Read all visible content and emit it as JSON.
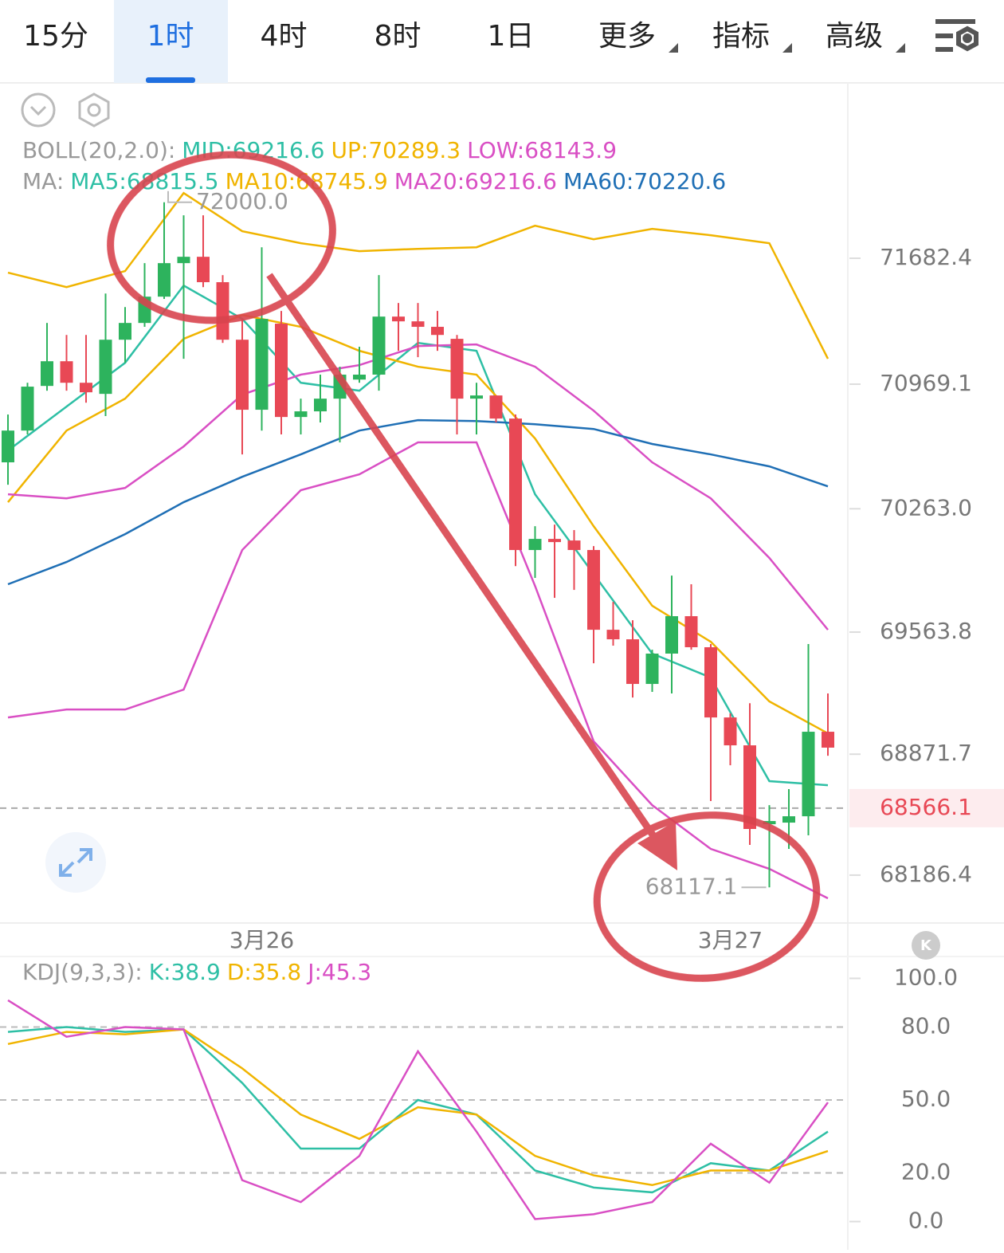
{
  "toolbar": {
    "tabs": [
      "15分",
      "1时",
      "4时",
      "8时",
      "1日",
      "更多",
      "指标",
      "高级"
    ],
    "active_tab": "1时"
  },
  "chart_data": [
    {
      "type": "candlestick",
      "ylim": [
        67915,
        72672
      ],
      "yticks": [
        71682.4,
        70969.1,
        {
          "value": 70263,
          "label": "70263.0"
        },
        69563.8,
        68871.7,
        68186.4
      ],
      "xticks": [
        {
          "value": 13,
          "label": "3月26"
        },
        {
          "value": 37,
          "label": "3月27"
        }
      ],
      "up_color": "#2db35d",
      "down_color": "#e84855",
      "open": [
        70526,
        70706,
        70959,
        71099,
        70977,
        70914,
        71221,
        71316,
        71465,
        71655,
        71691,
        71547,
        71221,
        70824,
        71312,
        70783,
        70815,
        70887,
        70995,
        71023,
        71352,
        71325,
        71294,
        71226,
        70887,
        70905,
        70774,
        70029,
        70092,
        70083,
        70029,
        69577,
        69523,
        69270,
        69442,
        69654,
        69478,
        69080,
        68922,
        68475,
        68484,
        68520,
        68999
      ],
      "close": [
        70706,
        70955,
        71099,
        70977,
        70923,
        71221,
        71316,
        71465,
        71655,
        71691,
        71547,
        71221,
        70824,
        71339,
        70783,
        70815,
        70887,
        71023,
        71023,
        71352,
        71325,
        71294,
        71248,
        70887,
        70905,
        70774,
        70029,
        70092,
        70074,
        70029,
        69577,
        69523,
        69270,
        69442,
        69654,
        69478,
        69080,
        68922,
        68448,
        68493,
        68520,
        68999,
        68909
      ],
      "high": [
        70797,
        70977,
        71316,
        71248,
        71248,
        71483,
        71406,
        71655,
        72000,
        71926,
        71926,
        71587,
        71339,
        71745,
        71384,
        70887,
        71023,
        71068,
        71181,
        71587,
        71429,
        71429,
        71384,
        71248,
        70977,
        70905,
        70797,
        70164,
        70173,
        70142,
        70051,
        69735,
        69631,
        69464,
        69884,
        69835,
        69496,
        69103,
        69161,
        68583,
        68674,
        69496,
        69216
      ],
      "low": [
        70399,
        70684,
        70932,
        70932,
        70864,
        70788,
        71090,
        71294,
        71452,
        71113,
        71519,
        71203,
        70571,
        70706,
        70684,
        70684,
        70752,
        70639,
        70977,
        70932,
        71158,
        71122,
        71158,
        70684,
        70684,
        70752,
        69938,
        69871,
        69758,
        69803,
        69387,
        69487,
        69193,
        69225,
        69216,
        69464,
        68606,
        68809,
        68358,
        68117.1,
        68335,
        68412,
        68863
      ],
      "line_x": [
        0,
        3,
        6,
        9,
        12,
        15,
        18,
        21,
        24,
        27,
        30,
        33,
        36,
        39,
        42
      ],
      "series": [
        {
          "name": "UP:70289.3",
          "color": "#f0b400",
          "values": [
            71601,
            71519,
            71610,
            72052,
            71836,
            71768,
            71723,
            71736,
            71745,
            71867,
            71790,
            71849,
            71813,
            71768,
            71113
          ]
        },
        {
          "name": "LOW:68143.9",
          "color": "#d94fc4",
          "values": [
            69080,
            69125,
            69125,
            69238,
            70029,
            70368,
            70458,
            70639,
            70639,
            69825,
            68945,
            68583,
            68335,
            68222,
            68055
          ]
        },
        {
          "name": "MA5:68815.5",
          "color": "#2ebfa5",
          "values": [
            70593,
            70842,
            71090,
            71528,
            71339,
            70977,
            70932,
            71203,
            71158,
            70345,
            69893,
            69442,
            69306,
            68719,
            68696
          ]
        },
        {
          "name": "MA10:68745.9",
          "color": "#f0b400",
          "values": [
            70300,
            70706,
            70887,
            71226,
            71361,
            71294,
            71158,
            71068,
            71023,
            70661,
            70164,
            69713,
            69509,
            69171,
            68990
          ]
        },
        {
          "name": "MA20:69216.6",
          "color": "#d94fc4",
          "values": [
            70345,
            70322,
            70381,
            70616,
            70910,
            71023,
            71077,
            71185,
            71194,
            71068,
            70819,
            70526,
            70322,
            69984,
            69577
          ]
        },
        {
          "name": "MA60:70220.6",
          "color": "#1f6fb5",
          "values": [
            69835,
            69961,
            70119,
            70300,
            70444,
            70571,
            70706,
            70765,
            70760,
            70742,
            70715,
            70630,
            70571,
            70503,
            70390
          ]
        }
      ],
      "boll_label": "BOLL(20,2.0):",
      "ma_label": "MA:",
      "mid": {
        "name": "MID:69216.6",
        "color": "#2ebfa5"
      },
      "high_label": {
        "value": 72000,
        "label": "72000.0"
      },
      "low_label": 68117.1,
      "last_price": 68566.1,
      "last_color": "#e84855"
    },
    {
      "type": "line",
      "label": "KDJ(9,3,3):",
      "ylim": [
        -9,
        109
      ],
      "yticks": [
        {
          "value": 100,
          "label": "100.0"
        },
        {
          "value": 80,
          "label": "80.0"
        },
        {
          "value": 50,
          "label": "50.0"
        },
        {
          "value": 20,
          "label": "20.0"
        },
        {
          "value": 0,
          "label": "0.0"
        }
      ],
      "x": [
        0,
        3,
        6,
        9,
        12,
        15,
        18,
        21,
        24,
        27,
        30,
        33,
        36,
        39,
        42
      ],
      "series": [
        {
          "name": "K:38.9",
          "color": "#2ebfa5",
          "values": [
            78,
            80,
            78,
            79,
            57,
            30,
            30,
            50,
            44,
            21,
            14,
            12,
            24,
            21,
            37
          ]
        },
        {
          "name": "D:35.8",
          "color": "#f0b400",
          "values": [
            73,
            78,
            77,
            79,
            63,
            44,
            34,
            47,
            44,
            27,
            19,
            15,
            21,
            21,
            29
          ]
        },
        {
          "name": "J:45.3",
          "color": "#d94fc4",
          "values": [
            91,
            76,
            80,
            79,
            17,
            8,
            27,
            70,
            37,
            1,
            3,
            8,
            32,
            16,
            49
          ]
        }
      ]
    }
  ]
}
